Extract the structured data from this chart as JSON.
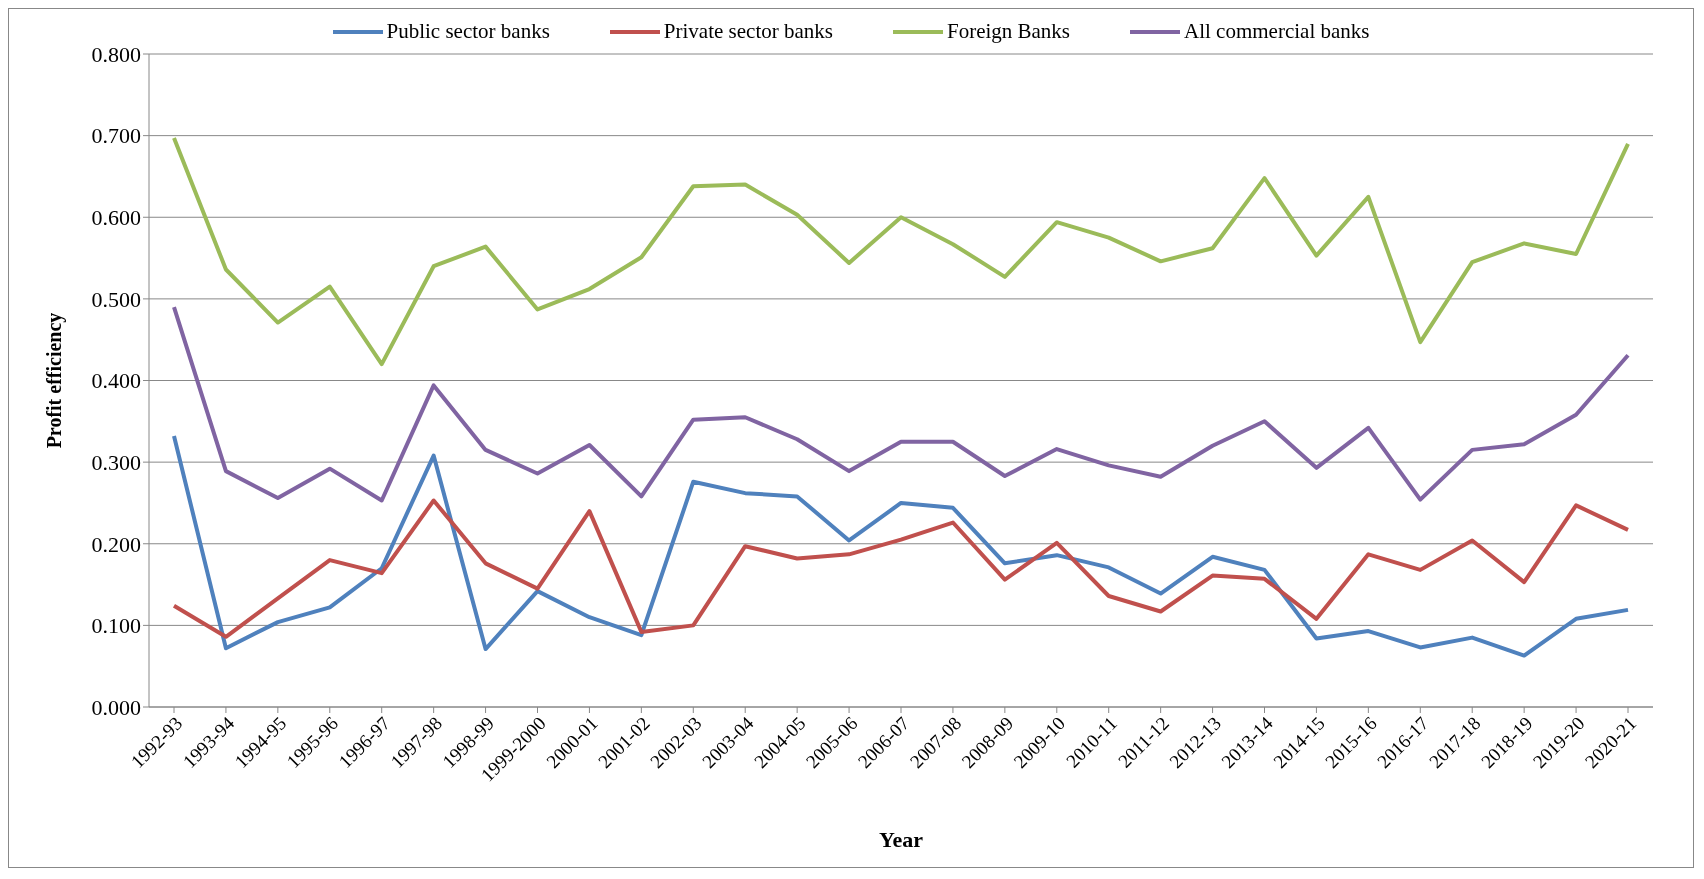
{
  "chart_data": {
    "type": "line",
    "xlabel": "Year",
    "ylabel": "Profit efficiency",
    "categories": [
      "1992-93",
      "1993-94",
      "1994-95",
      "1995-96",
      "1996-97",
      "1997-98",
      "1998-99",
      "1999-2000",
      "2000-01",
      "2001-02",
      "2002-03",
      "2003-04",
      "2004-05",
      "2005-06",
      "2006-07",
      "2007-08",
      "2008-09",
      "2009-10",
      "2010-11",
      "2011-12",
      "2012-13",
      "2013-14",
      "2014-15",
      "2015-16",
      "2016-17",
      "2017-18",
      "2018-19",
      "2019-20",
      "2020-21"
    ],
    "series": [
      {
        "name": "Public sector banks",
        "color": "#4f81bd",
        "values": [
          0.332,
          0.072,
          0.104,
          0.122,
          0.17,
          0.308,
          0.071,
          0.142,
          0.11,
          0.088,
          0.276,
          0.262,
          0.258,
          0.204,
          0.25,
          0.244,
          0.176,
          0.186,
          0.171,
          0.139,
          0.184,
          0.168,
          0.084,
          0.093,
          0.073,
          0.085,
          0.063,
          0.108,
          0.119
        ]
      },
      {
        "name": "Private sector banks",
        "color": "#c0504d",
        "values": [
          0.124,
          0.086,
          0.133,
          0.18,
          0.164,
          0.253,
          0.176,
          0.145,
          0.24,
          0.092,
          0.1,
          0.197,
          0.182,
          0.187,
          0.205,
          0.226,
          0.156,
          0.201,
          0.136,
          0.117,
          0.161,
          0.157,
          0.108,
          0.187,
          0.168,
          0.204,
          0.153,
          0.247,
          0.217
        ]
      },
      {
        "name": "Foreign Banks",
        "color": "#9bbb59",
        "values": [
          0.697,
          0.536,
          0.471,
          0.515,
          0.42,
          0.54,
          0.564,
          0.487,
          0.512,
          0.551,
          0.638,
          0.64,
          0.603,
          0.544,
          0.6,
          0.567,
          0.527,
          0.594,
          0.575,
          0.546,
          0.562,
          0.648,
          0.553,
          0.625,
          0.447,
          0.545,
          0.568,
          0.555,
          0.69
        ]
      },
      {
        "name": "All commercial banks",
        "color": "#8064a2",
        "values": [
          0.49,
          0.289,
          0.256,
          0.292,
          0.253,
          0.394,
          0.315,
          0.286,
          0.321,
          0.258,
          0.352,
          0.355,
          0.328,
          0.289,
          0.325,
          0.325,
          0.283,
          0.316,
          0.296,
          0.282,
          0.32,
          0.35,
          0.293,
          0.342,
          0.254,
          0.315,
          0.322,
          0.358,
          0.431
        ]
      }
    ],
    "ylim": [
      0,
      0.8
    ],
    "yticks": [
      {
        "value": 0,
        "label": "0.000"
      },
      {
        "value": 0.1,
        "label": "0.100"
      },
      {
        "value": 0.2,
        "label": "0.200"
      },
      {
        "value": 0.3,
        "label": "0.300"
      },
      {
        "value": 0.4,
        "label": "0.400"
      },
      {
        "value": 0.5,
        "label": "0.500"
      },
      {
        "value": 0.6,
        "label": "0.600"
      },
      {
        "value": 0.7,
        "label": "0.700"
      },
      {
        "value": 0.8,
        "label": "0.800"
      }
    ],
    "grid": "y",
    "legend": "top",
    "marker": "none",
    "line_style": "solid"
  }
}
